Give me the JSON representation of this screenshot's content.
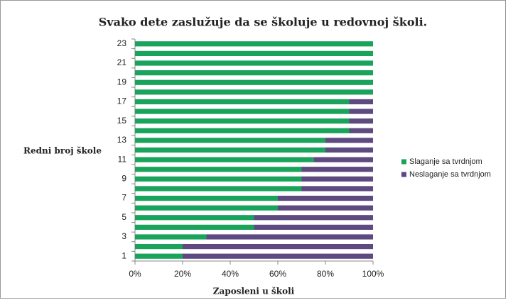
{
  "chart_data": {
    "type": "stacked-barh",
    "title": "Svako dete zaslužuje da se školuje u redovnoj školi.",
    "ylabel": "Redni broj škole",
    "xlabel": "Zaposleni u školi",
    "categories": [
      "1",
      null,
      "3",
      null,
      "5",
      null,
      "7",
      null,
      "9",
      null,
      "11",
      null,
      "13",
      null,
      "15",
      null,
      "17",
      null,
      "19",
      null,
      "21",
      null,
      "23"
    ],
    "series": [
      {
        "name": "Slaganje sa tvrdnjom",
        "color": "#1aa35a",
        "values": [
          20,
          20,
          30,
          50,
          50,
          60,
          60,
          70,
          70,
          70,
          75,
          80,
          80,
          90,
          90,
          90,
          90,
          100,
          100,
          100,
          100,
          100,
          100
        ]
      },
      {
        "name": "Neslaganje sa tvrdnjom",
        "color": "#5e4a80",
        "values": [
          80,
          80,
          70,
          50,
          50,
          40,
          40,
          30,
          30,
          30,
          25,
          20,
          20,
          10,
          10,
          10,
          10,
          0,
          0,
          0,
          0,
          0,
          0
        ]
      }
    ],
    "xlim": [
      0,
      100
    ],
    "xticks": [
      {
        "value": 0,
        "label": "0%"
      },
      {
        "value": 20,
        "label": "20%"
      },
      {
        "value": 40,
        "label": "40%"
      },
      {
        "value": 60,
        "label": "60%"
      },
      {
        "value": 80,
        "label": "80%"
      },
      {
        "value": 100,
        "label": "100%"
      }
    ],
    "legend": "right"
  }
}
